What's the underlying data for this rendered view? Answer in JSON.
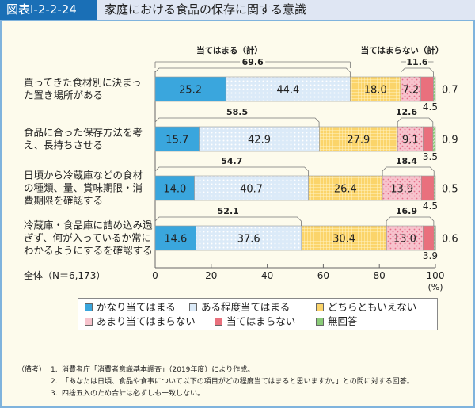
{
  "header": {
    "figure_no": "図表Ⅰ-2-2-24",
    "title": "家庭における食品の保存に関する意識"
  },
  "chart_data": {
    "type": "bar",
    "orientation": "horizontal-stacked",
    "xlim": [
      0,
      100
    ],
    "xticks": [
      "0",
      "20",
      "40",
      "60",
      "80",
      "100"
    ],
    "xunit": "(%)",
    "group_labels": {
      "agree": "当てはまる（計）",
      "disagree": "当てはまらない（計）"
    },
    "sample_note": "全体（N＝6,173）",
    "categories": [
      [
        "買ってきた食材別に決まっ",
        "た置き場所がある"
      ],
      [
        "食品に合った保存方法を考",
        "え、長持ちさせる"
      ],
      [
        "日頃から冷蔵庫などの食材",
        "の種類、量、賞味期限・消",
        "費期限を確認する"
      ],
      [
        "冷蔵庫・食品庫に詰め込み過",
        "ぎず、何が入っているか常に",
        "わかるようにするを確認する"
      ]
    ],
    "series": [
      {
        "name": "かなり当てはまる",
        "values": [
          25.2,
          15.7,
          14.0,
          14.6
        ],
        "color": "#3aa6dd"
      },
      {
        "name": "ある程度当てはまる",
        "values": [
          44.4,
          42.9,
          40.7,
          37.6
        ],
        "color": "#dbeaf8"
      },
      {
        "name": "どちらともいえない",
        "values": [
          18.0,
          27.9,
          26.4,
          30.4
        ],
        "color": "#fbd46a"
      },
      {
        "name": "あまり当てはまらない",
        "values": [
          7.2,
          9.1,
          13.9,
          13.0
        ],
        "color": "#f7c3cd"
      },
      {
        "name": "当てはまらない",
        "values": [
          4.5,
          3.5,
          4.5,
          3.9
        ],
        "color": "#e9707d"
      },
      {
        "name": "無回答",
        "values": [
          0.7,
          0.9,
          0.5,
          0.6
        ],
        "color": "#8acb78"
      }
    ],
    "agree_totals": [
      69.6,
      58.5,
      54.7,
      52.1
    ],
    "disagree_totals": [
      11.6,
      12.6,
      18.4,
      16.9
    ],
    "legend_position": "bottom"
  },
  "notes": {
    "label": "（備考）",
    "items": [
      {
        "num": "1.",
        "text": "消費者庁「消費者意識基本調査」（2019年度）により作成。"
      },
      {
        "num": "2.",
        "text": "「あなたは日頃、食品や食事について以下の項目がどの程度当てはまると思いますか。」との問に対する回答。"
      },
      {
        "num": "3.",
        "text": "四捨五入のため合計は必ずしも一致しない。"
      }
    ]
  }
}
